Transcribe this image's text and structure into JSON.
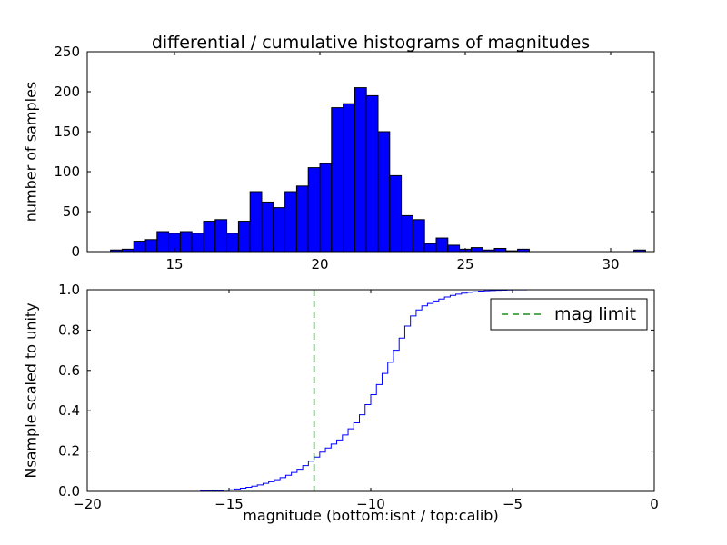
{
  "figure": {
    "title": "differential / cumulative histograms of magnitudes",
    "background": "#ffffff",
    "frame_color": "#000000"
  },
  "legend": {
    "label": "mag limit"
  },
  "chart_data": [
    {
      "type": "bar",
      "name": "differential-histogram",
      "title": "differential / cumulative histograms of magnitudes",
      "xlabel": "",
      "ylabel": "number of samples",
      "bar_color": "#0000ff",
      "bar_edge_color": "#000000",
      "xlim": [
        12,
        31.5
      ],
      "ylim": [
        0,
        250
      ],
      "xticks": [
        15,
        20,
        25,
        30
      ],
      "xtick_labels": [
        "15",
        "20",
        "25",
        "30"
      ],
      "yticks": [
        0,
        50,
        100,
        150,
        200,
        250
      ],
      "ytick_labels": [
        "0",
        "50",
        "100",
        "150",
        "200",
        "250"
      ],
      "grid": false,
      "bin_start": 12.8,
      "bin_width": 0.4,
      "counts": [
        2,
        3,
        13,
        15,
        25,
        23,
        25,
        23,
        38,
        40,
        23,
        38,
        75,
        62,
        55,
        75,
        82,
        105,
        110,
        180,
        185,
        205,
        195,
        150,
        95,
        45,
        40,
        10,
        17,
        8,
        3,
        5,
        2,
        4,
        1,
        3,
        0,
        0,
        0,
        0,
        0,
        0,
        0,
        0,
        0,
        2,
        0
      ]
    },
    {
      "type": "line",
      "name": "cumulative-histogram",
      "xlabel": "magnitude (bottom:isnt / top:calib)",
      "ylabel": "Nsample scaled to unity",
      "line_color": "#0000ff",
      "line_style": "steps",
      "xlim": [
        -20,
        0
      ],
      "ylim": [
        0.0,
        1.0
      ],
      "xticks": [
        -20,
        -15,
        -10,
        -5,
        0
      ],
      "xtick_labels": [
        "−20",
        "−15",
        "−10",
        "−5",
        "0"
      ],
      "yticks": [
        0.0,
        0.2,
        0.4,
        0.6,
        0.8,
        1.0
      ],
      "ytick_labels": [
        "0.0",
        "0.2",
        "0.4",
        "0.6",
        "0.8",
        "1.0"
      ],
      "grid": false,
      "legend_position": "upper right",
      "vline": {
        "x": -12,
        "color": "#228b22",
        "style": "dashed",
        "label": "mag limit"
      },
      "step_points": [
        [
          -17.0,
          0.0
        ],
        [
          -16.0,
          0.002
        ],
        [
          -15.6,
          0.004
        ],
        [
          -15.2,
          0.006
        ],
        [
          -15.0,
          0.008
        ],
        [
          -14.8,
          0.012
        ],
        [
          -14.6,
          0.016
        ],
        [
          -14.4,
          0.02
        ],
        [
          -14.2,
          0.026
        ],
        [
          -14.0,
          0.032
        ],
        [
          -13.8,
          0.04
        ],
        [
          -13.6,
          0.048
        ],
        [
          -13.4,
          0.058
        ],
        [
          -13.2,
          0.068
        ],
        [
          -13.0,
          0.08
        ],
        [
          -12.8,
          0.094
        ],
        [
          -12.6,
          0.11
        ],
        [
          -12.4,
          0.128
        ],
        [
          -12.2,
          0.15
        ],
        [
          -12.0,
          0.17
        ],
        [
          -11.8,
          0.195
        ],
        [
          -11.6,
          0.215
        ],
        [
          -11.4,
          0.235
        ],
        [
          -11.2,
          0.255
        ],
        [
          -11.0,
          0.28
        ],
        [
          -10.8,
          0.31
        ],
        [
          -10.6,
          0.34
        ],
        [
          -10.4,
          0.38
        ],
        [
          -10.2,
          0.43
        ],
        [
          -10.0,
          0.48
        ],
        [
          -9.8,
          0.53
        ],
        [
          -9.6,
          0.585
        ],
        [
          -9.4,
          0.64
        ],
        [
          -9.2,
          0.7
        ],
        [
          -9.0,
          0.76
        ],
        [
          -8.8,
          0.82
        ],
        [
          -8.6,
          0.87
        ],
        [
          -8.4,
          0.9
        ],
        [
          -8.2,
          0.92
        ],
        [
          -8.0,
          0.932
        ],
        [
          -7.8,
          0.944
        ],
        [
          -7.6,
          0.954
        ],
        [
          -7.4,
          0.964
        ],
        [
          -7.2,
          0.972
        ],
        [
          -7.0,
          0.978
        ],
        [
          -6.8,
          0.983
        ],
        [
          -6.6,
          0.987
        ],
        [
          -6.4,
          0.99
        ],
        [
          -6.2,
          0.993
        ],
        [
          -6.0,
          0.995
        ],
        [
          -5.8,
          0.996
        ],
        [
          -5.6,
          0.997
        ],
        [
          -5.4,
          0.998
        ],
        [
          -5.2,
          0.999
        ],
        [
          -5.0,
          0.9995
        ],
        [
          -4.5,
          1.0
        ],
        [
          -1.0,
          1.0
        ]
      ]
    }
  ]
}
